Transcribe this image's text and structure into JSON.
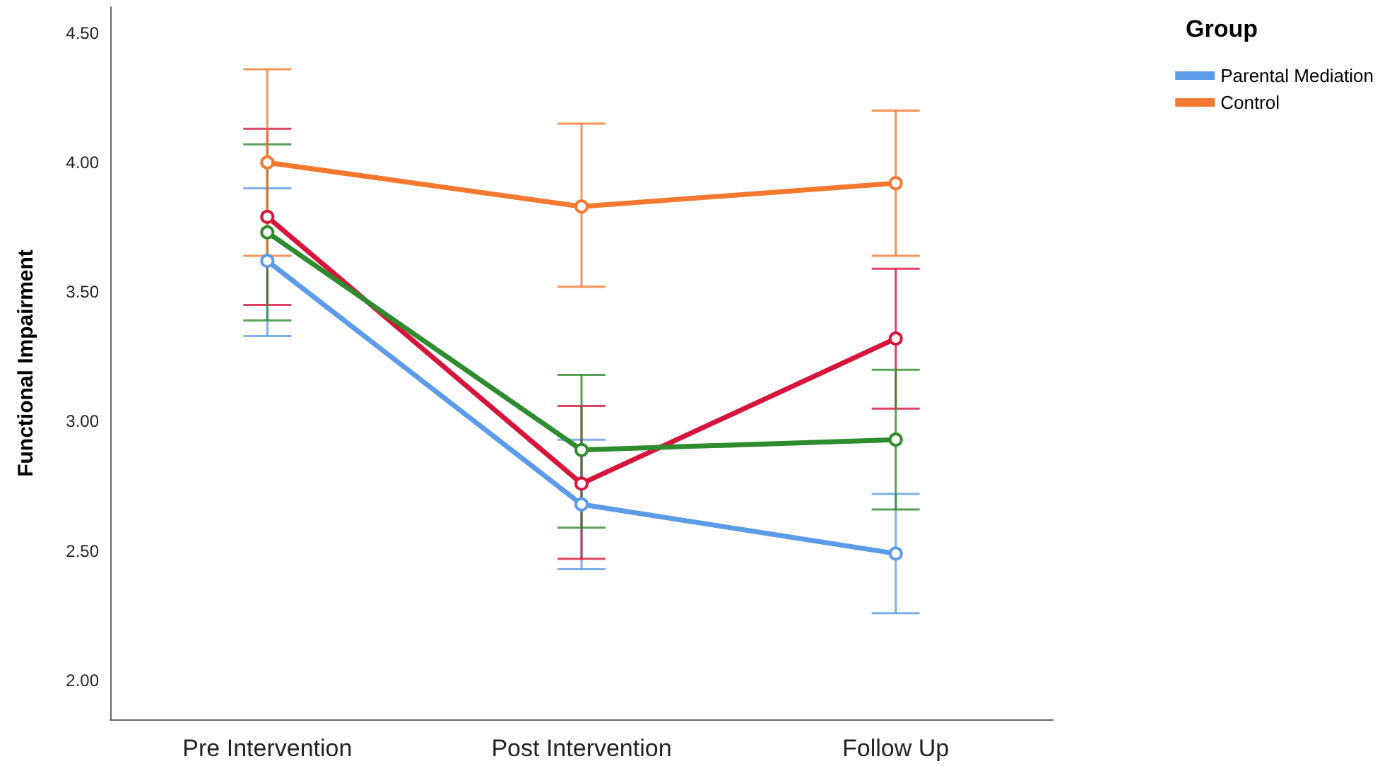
{
  "chart_data": {
    "type": "line",
    "ylabel": "Functional Impairment",
    "legend_title": "Group",
    "categories": [
      "Pre Intervention",
      "Post Intervention",
      "Follow Up"
    ],
    "series": [
      {
        "name": "Parental Mediation",
        "color": "#5b9be8",
        "values": [
          3.62,
          2.68,
          2.49
        ],
        "errors": [
          [
            3.33,
            3.9
          ],
          [
            2.43,
            2.93
          ],
          [
            2.26,
            2.72
          ]
        ]
      },
      {
        "color": "#d6143c",
        "values": [
          3.79,
          2.76,
          3.32
        ],
        "errors": [
          [
            3.45,
            4.13
          ],
          [
            2.47,
            3.06
          ],
          [
            3.05,
            3.59
          ]
        ]
      },
      {
        "color": "#2e8b2e",
        "values": [
          3.73,
          2.89,
          2.93
        ],
        "errors": [
          [
            3.39,
            4.07
          ],
          [
            2.59,
            3.18
          ],
          [
            2.66,
            3.2
          ]
        ]
      },
      {
        "name": "Control",
        "color": "#f5782f",
        "values": [
          4.0,
          3.83,
          3.92
        ],
        "errors": [
          [
            3.64,
            4.36
          ],
          [
            3.52,
            4.15
          ],
          [
            3.64,
            4.2
          ]
        ]
      }
    ],
    "ylim": [
      1.85,
      4.6
    ],
    "yticks": [
      {
        "value": 2,
        "label": "2.00"
      },
      {
        "value": 2.5,
        "label": "2.50"
      },
      {
        "value": 3,
        "label": "3.00"
      },
      {
        "value": 3.5,
        "label": "3.50"
      },
      {
        "value": 4,
        "label": "4.00"
      },
      {
        "value": 4.5,
        "label": "4.50"
      }
    ],
    "grid": false,
    "legend": "top right",
    "marker": "circle",
    "line_style": "solid"
  }
}
